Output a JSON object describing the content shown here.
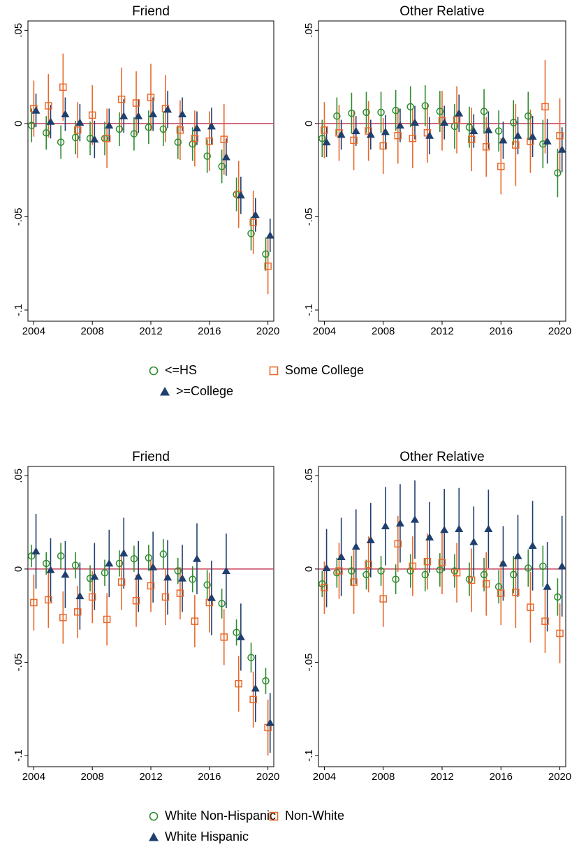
{
  "chart_data": [
    {
      "type": "scatter",
      "x": [
        2004,
        2005,
        2006,
        2007,
        2008,
        2009,
        2010,
        2011,
        2012,
        2013,
        2014,
        2015,
        2016,
        2017,
        2018,
        2019,
        2020
      ],
      "xlim": [
        2003.6,
        2020.4
      ],
      "xticks": [
        2004,
        2008,
        2012,
        2016,
        2020
      ],
      "ylim": [
        -0.106,
        0.055
      ],
      "yticks": [
        {
          "value": 0.05,
          "label": ".05"
        },
        0,
        {
          "value": -0.05,
          "label": "-.05"
        },
        {
          "value": -0.1,
          "label": "-.1"
        }
      ],
      "hline": 0,
      "hline_color": "#c8405e",
      "legend": "bottom",
      "series": [
        {
          "name": "<=HS",
          "color": "#2e8b2e",
          "marker": "circle"
        },
        {
          "name": "Some College",
          "color": "#e8692c",
          "marker": "square"
        },
        {
          "name": ">=College",
          "color": "#1f3f6e",
          "marker": "triangle"
        }
      ],
      "panels": [
        {
          "title": "Friend",
          "series": [
            {
              "values": [
                -0.001,
                -0.005,
                -0.01,
                -0.0075,
                -0.008,
                -0.008,
                -0.003,
                -0.0055,
                -0.002,
                -0.003,
                -0.01,
                -0.011,
                -0.0175,
                -0.023,
                -0.038,
                -0.059,
                -0.07
              ],
              "errors": [
                0.009,
                0.009,
                0.009,
                0.009,
                0.009,
                0.009,
                0.009,
                0.009,
                0.009,
                0.009,
                0.009,
                0.009,
                0.009,
                0.009,
                0.009,
                0.009,
                0.009
              ]
            },
            {
              "values": [
                0.008,
                0.0095,
                0.0195,
                -0.0035,
                0.0045,
                -0.008,
                0.013,
                0.011,
                0.014,
                0.008,
                -0.0035,
                -0.008,
                -0.0095,
                -0.0085,
                -0.038,
                -0.053,
                -0.0765
              ],
              "errors": [
                0.015,
                0.017,
                0.018,
                0.015,
                0.016,
                0.016,
                0.017,
                0.017,
                0.018,
                0.018,
                0.016,
                0.015,
                0.016,
                0.019,
                0.018,
                0.017,
                0.015
              ]
            },
            {
              "values": [
                0.007,
                0.001,
                0.005,
                0.0005,
                -0.0085,
                -0.001,
                0.004,
                0.004,
                0.005,
                0.0075,
                0.005,
                -0.0025,
                -0.0015,
                -0.018,
                -0.0385,
                -0.049,
                -0.06
              ],
              "errors": [
                0.009,
                0.009,
                0.009,
                0.01,
                0.01,
                0.009,
                0.009,
                0.009,
                0.009,
                0.01,
                0.009,
                0.009,
                0.01,
                0.01,
                0.01,
                0.009,
                0.009
              ]
            }
          ]
        },
        {
          "title": "Other Relative",
          "series": [
            {
              "values": [
                -0.008,
                0.004,
                0.0055,
                0.006,
                0.006,
                0.007,
                0.009,
                0.0095,
                0.0065,
                -0.0015,
                -0.002,
                0.0065,
                -0.004,
                0.0005,
                0.004,
                -0.011,
                -0.0265
              ],
              "errors": [
                0.01,
                0.01,
                0.011,
                0.011,
                0.011,
                0.011,
                0.011,
                0.011,
                0.011,
                0.012,
                0.011,
                0.012,
                0.011,
                0.012,
                0.013,
                0.013,
                0.013
              ]
            },
            {
              "values": [
                -0.0035,
                -0.005,
                -0.009,
                -0.004,
                -0.012,
                -0.0065,
                -0.008,
                -0.005,
                0.0015,
                0.002,
                -0.0085,
                -0.0125,
                -0.023,
                -0.0115,
                -0.0095,
                0.009,
                -0.0065
              ],
              "errors": [
                0.015,
                0.015,
                0.016,
                0.016,
                0.015,
                0.015,
                0.016,
                0.016,
                0.016,
                0.018,
                0.017,
                0.016,
                0.015,
                0.022,
                0.017,
                0.025,
                0.02
              ]
            },
            {
              "values": [
                -0.01,
                -0.006,
                -0.004,
                -0.006,
                -0.0045,
                -0.001,
                0.0005,
                -0.0065,
                0.0005,
                0.0055,
                -0.004,
                -0.0035,
                -0.009,
                -0.0065,
                -0.007,
                -0.0095,
                -0.014
              ],
              "errors": [
                0.008,
                0.008,
                0.008,
                0.008,
                0.009,
                0.009,
                0.009,
                0.01,
                0.009,
                0.01,
                0.009,
                0.01,
                0.01,
                0.01,
                0.011,
                0.012,
                0.012
              ]
            }
          ]
        }
      ]
    },
    {
      "type": "scatter",
      "x": [
        2004,
        2005,
        2006,
        2007,
        2008,
        2009,
        2010,
        2011,
        2012,
        2013,
        2014,
        2015,
        2016,
        2017,
        2018,
        2019,
        2020
      ],
      "xlim": [
        2003.6,
        2020.4
      ],
      "xticks": [
        2004,
        2008,
        2012,
        2016,
        2020
      ],
      "ylim": [
        -0.106,
        0.055
      ],
      "yticks": [
        {
          "value": 0.05,
          "label": ".05"
        },
        0,
        {
          "value": -0.05,
          "label": "-.05"
        },
        {
          "value": -0.1,
          "label": "-.1"
        }
      ],
      "hline": 0,
      "hline_color": "#c8405e",
      "legend": "bottom",
      "series": [
        {
          "name": "White Non-Hispanic",
          "color": "#2e8b2e",
          "marker": "circle"
        },
        {
          "name": "Non-White",
          "color": "#e8692c",
          "marker": "square"
        },
        {
          "name": "White Hispanic",
          "color": "#1f3f6e",
          "marker": "triangle"
        }
      ],
      "panels": [
        {
          "title": "Friend",
          "series": [
            {
              "values": [
                0.007,
                0.003,
                0.007,
                0.002,
                -0.005,
                -0.002,
                0.003,
                0.0055,
                0.006,
                0.008,
                -0.001,
                -0.0055,
                -0.0085,
                -0.0185,
                -0.034,
                -0.0475,
                -0.06
              ],
              "errors": [
                0.006,
                0.006,
                0.007,
                0.007,
                0.007,
                0.007,
                0.007,
                0.007,
                0.007,
                0.008,
                0.007,
                0.007,
                0.008,
                0.008,
                0.007,
                0.008,
                0.007
              ]
            },
            {
              "values": [
                -0.018,
                -0.0165,
                -0.026,
                -0.023,
                -0.015,
                -0.027,
                -0.007,
                -0.017,
                -0.009,
                -0.015,
                -0.013,
                -0.028,
                -0.018,
                -0.0365,
                -0.0615,
                -0.07,
                -0.085
              ],
              "errors": [
                0.015,
                0.015,
                0.014,
                0.014,
                0.014,
                0.014,
                0.015,
                0.014,
                0.014,
                0.015,
                0.014,
                0.014,
                0.016,
                0.015,
                0.015,
                0.015,
                0.015
              ]
            },
            {
              "values": [
                0.0095,
                -0.0005,
                -0.003,
                -0.0145,
                -0.004,
                0.003,
                0.0085,
                -0.004,
                0.001,
                -0.0045,
                -0.005,
                0.0055,
                -0.0155,
                -0.001,
                -0.0365,
                -0.064,
                -0.0825
              ],
              "errors": [
                0.02,
                0.017,
                0.018,
                0.018,
                0.018,
                0.018,
                0.019,
                0.019,
                0.019,
                0.02,
                0.018,
                0.019,
                0.02,
                0.02,
                0.018,
                0.018,
                0.016
              ]
            }
          ]
        },
        {
          "title": "Other Relative",
          "series": [
            {
              "values": [
                -0.008,
                -0.002,
                -0.001,
                -0.003,
                -0.001,
                -0.0055,
                -0.001,
                -0.003,
                -0.0005,
                -0.001,
                -0.0055,
                -0.003,
                -0.0095,
                -0.003,
                0.0005,
                0.0015,
                -0.015
              ],
              "errors": [
                0.007,
                0.008,
                0.008,
                0.008,
                0.008,
                0.008,
                0.009,
                0.009,
                0.009,
                0.009,
                0.009,
                0.009,
                0.009,
                0.01,
                0.01,
                0.011,
                0.01
              ]
            },
            {
              "values": [
                -0.01,
                -0.001,
                -0.007,
                0.0025,
                -0.016,
                0.0135,
                0.0015,
                0.004,
                0.0035,
                -0.002,
                -0.006,
                -0.008,
                -0.013,
                -0.0125,
                -0.0205,
                -0.028,
                -0.0345
              ],
              "errors": [
                0.014,
                0.015,
                0.017,
                0.015,
                0.015,
                0.015,
                0.016,
                0.015,
                0.017,
                0.016,
                0.017,
                0.017,
                0.017,
                0.019,
                0.019,
                0.017,
                0.016
              ]
            },
            {
              "values": [
                0.0005,
                0.0065,
                0.012,
                0.0155,
                0.023,
                0.0245,
                0.0265,
                0.017,
                0.021,
                0.0215,
                0.0145,
                0.0215,
                0.003,
                0.007,
                0.0125,
                -0.0095,
                0.0015
              ],
              "errors": [
                0.021,
                0.021,
                0.02,
                0.02,
                0.021,
                0.021,
                0.021,
                0.019,
                0.022,
                0.022,
                0.019,
                0.021,
                0.02,
                0.022,
                0.024,
                0.024,
                0.027
              ]
            }
          ]
        }
      ]
    }
  ]
}
